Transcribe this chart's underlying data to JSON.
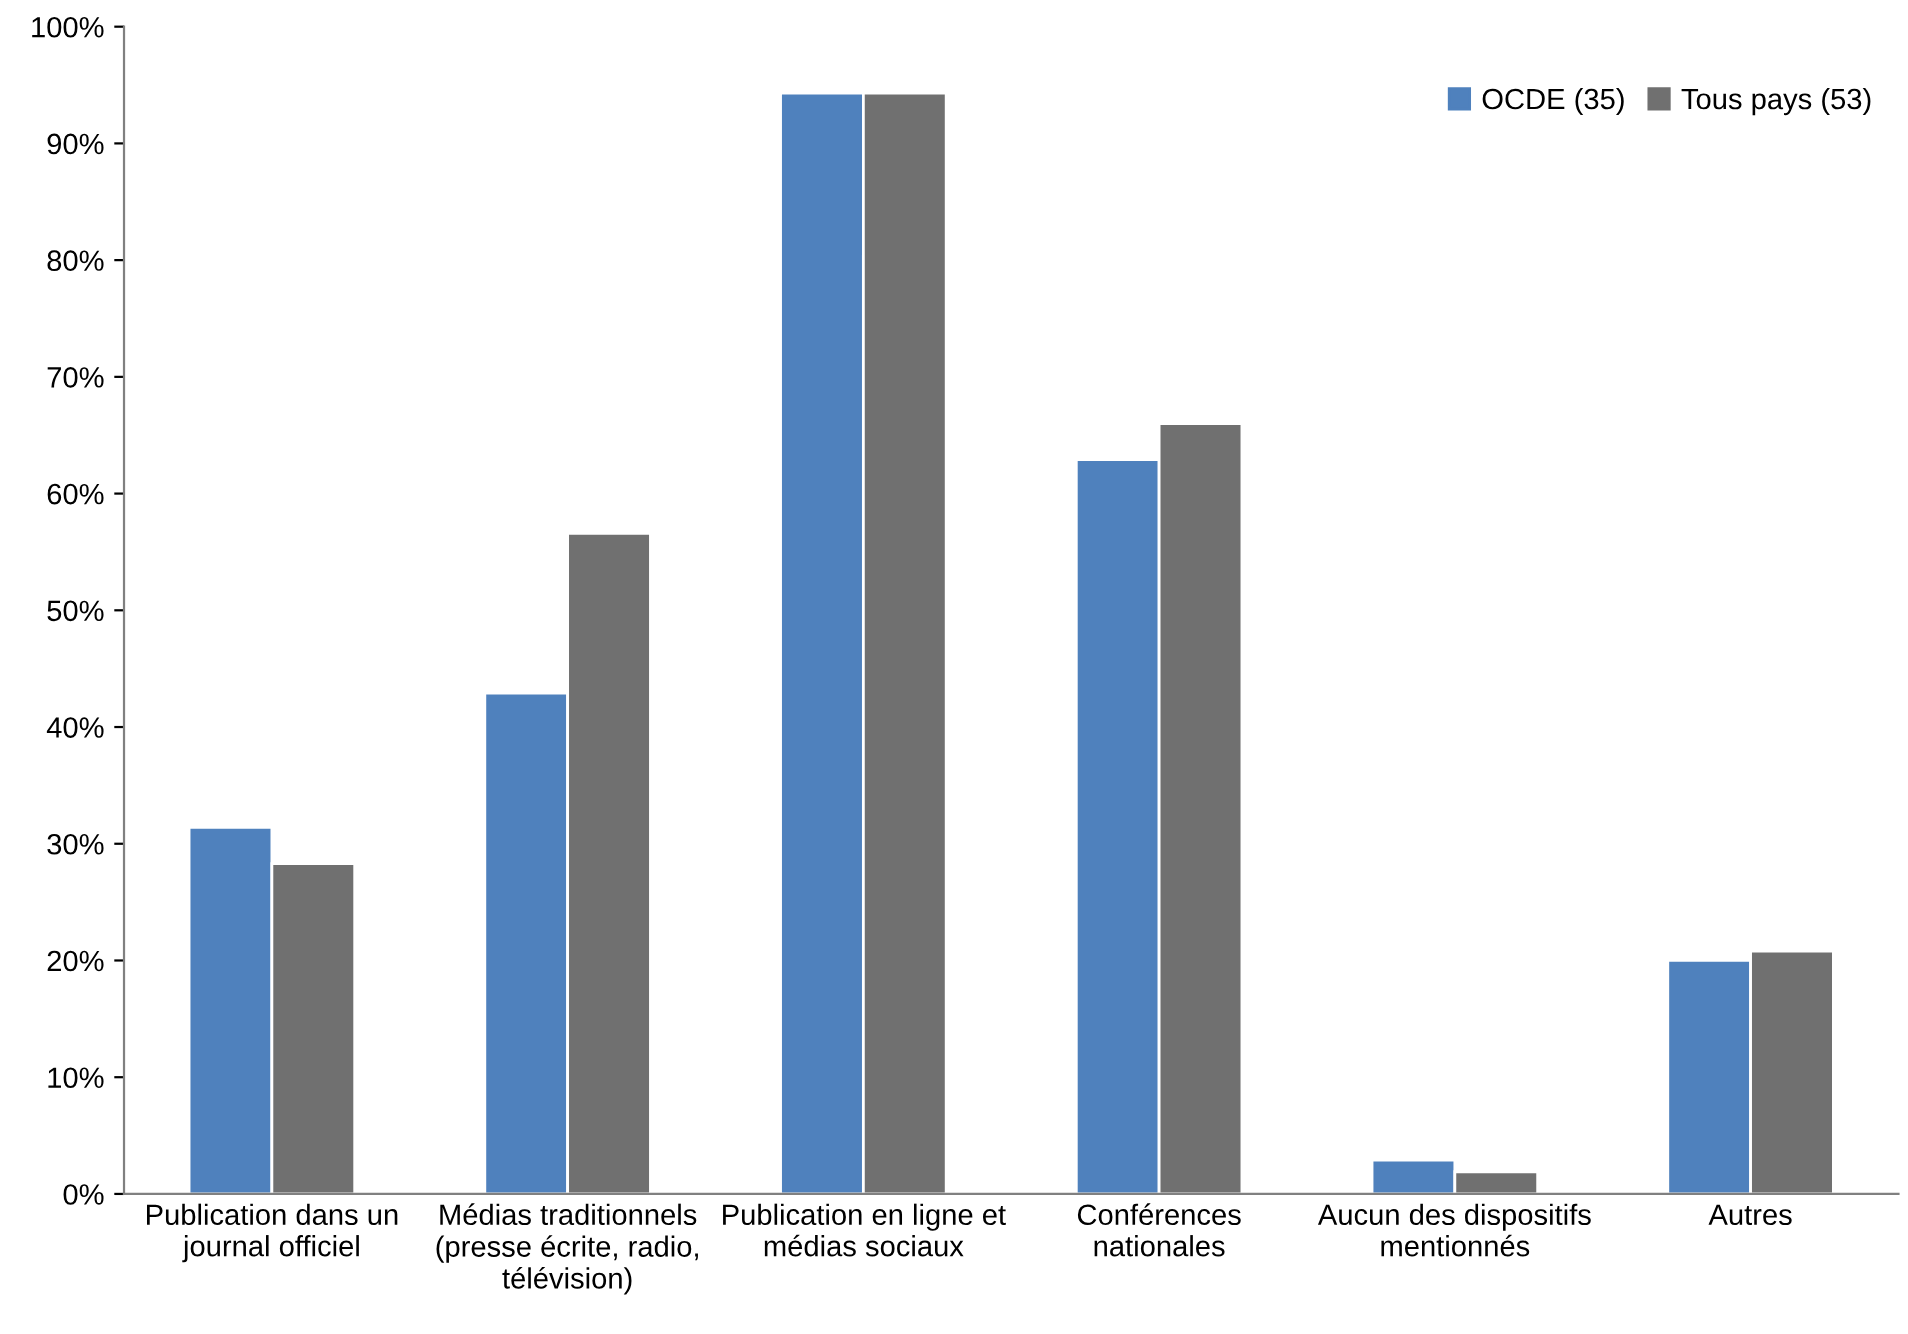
{
  "chart_data": {
    "type": "bar",
    "categories": [
      "Publication dans un\njournal officiel",
      "Médias traditionnels\n(presse écrite, radio,\ntélévision)",
      "Publication en ligne et\nmédias sociaux",
      "Conférences\nnationales",
      "Aucun des dispositifs\nmentionnés",
      "Autres"
    ],
    "series": [
      {
        "name": "OCDE (35)",
        "color": "#4f81bd",
        "values": [
          31.4,
          42.9,
          94.3,
          62.9,
          2.9,
          20.0
        ]
      },
      {
        "name": "Tous pays (53)",
        "color": "#707070",
        "values": [
          28.3,
          56.6,
          94.3,
          66.0,
          1.9,
          20.8
        ]
      }
    ],
    "ylim": [
      0,
      100
    ],
    "yticks": [
      {
        "value": 0,
        "label": "0%"
      },
      {
        "value": 10,
        "label": "10%"
      },
      {
        "value": 20,
        "label": "20%"
      },
      {
        "value": 30,
        "label": "30%"
      },
      {
        "value": 40,
        "label": "40%"
      },
      {
        "value": 50,
        "label": "50%"
      },
      {
        "value": 60,
        "label": "60%"
      },
      {
        "value": 70,
        "label": "70%"
      },
      {
        "value": 80,
        "label": "80%"
      },
      {
        "value": 90,
        "label": "90%"
      },
      {
        "value": 100,
        "label": "100%"
      }
    ],
    "grid": false,
    "legend": "top right"
  }
}
